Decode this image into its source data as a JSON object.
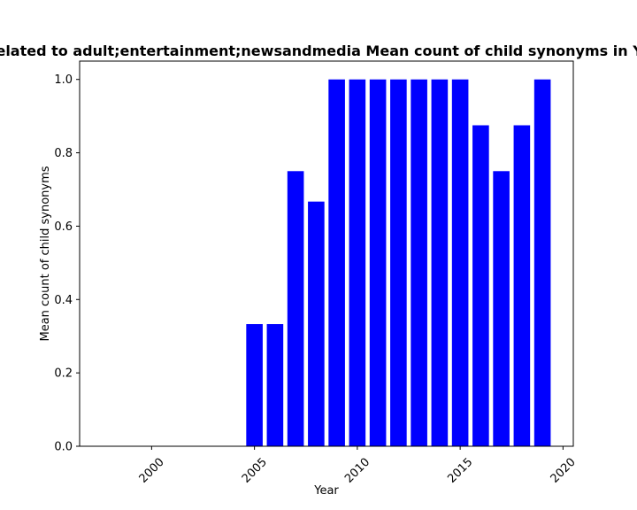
{
  "chart_data": {
    "type": "bar",
    "title": "Related to adult;entertainment;newsandmedia Mean count of child synonyms in Year",
    "xlabel": "Year",
    "ylabel": "Mean count of child synonyms",
    "x": [
      2005,
      2006,
      2007,
      2008,
      2009,
      2010,
      2011,
      2012,
      2013,
      2014,
      2015,
      2016,
      2017,
      2018,
      2019
    ],
    "values": [
      0.333,
      0.333,
      0.75,
      0.667,
      1.0,
      1.0,
      1.0,
      1.0,
      1.0,
      1.0,
      1.0,
      0.875,
      0.75,
      0.875,
      1.0
    ],
    "xlim": [
      1996.5,
      2020.5
    ],
    "ylim": [
      0,
      1.05
    ],
    "xticks": [
      2000,
      2005,
      2010,
      2015,
      2020
    ],
    "xtick_labels": [
      "2000",
      "2005",
      "2010",
      "2015",
      "2020"
    ],
    "yticks": [
      0.0,
      0.2,
      0.4,
      0.6,
      0.8,
      1.0
    ],
    "ytick_labels": [
      "0.0",
      "0.2",
      "0.4",
      "0.6",
      "0.8",
      "1.0"
    ],
    "bar_color": "#0000ff",
    "grid": false,
    "legend": "none"
  }
}
